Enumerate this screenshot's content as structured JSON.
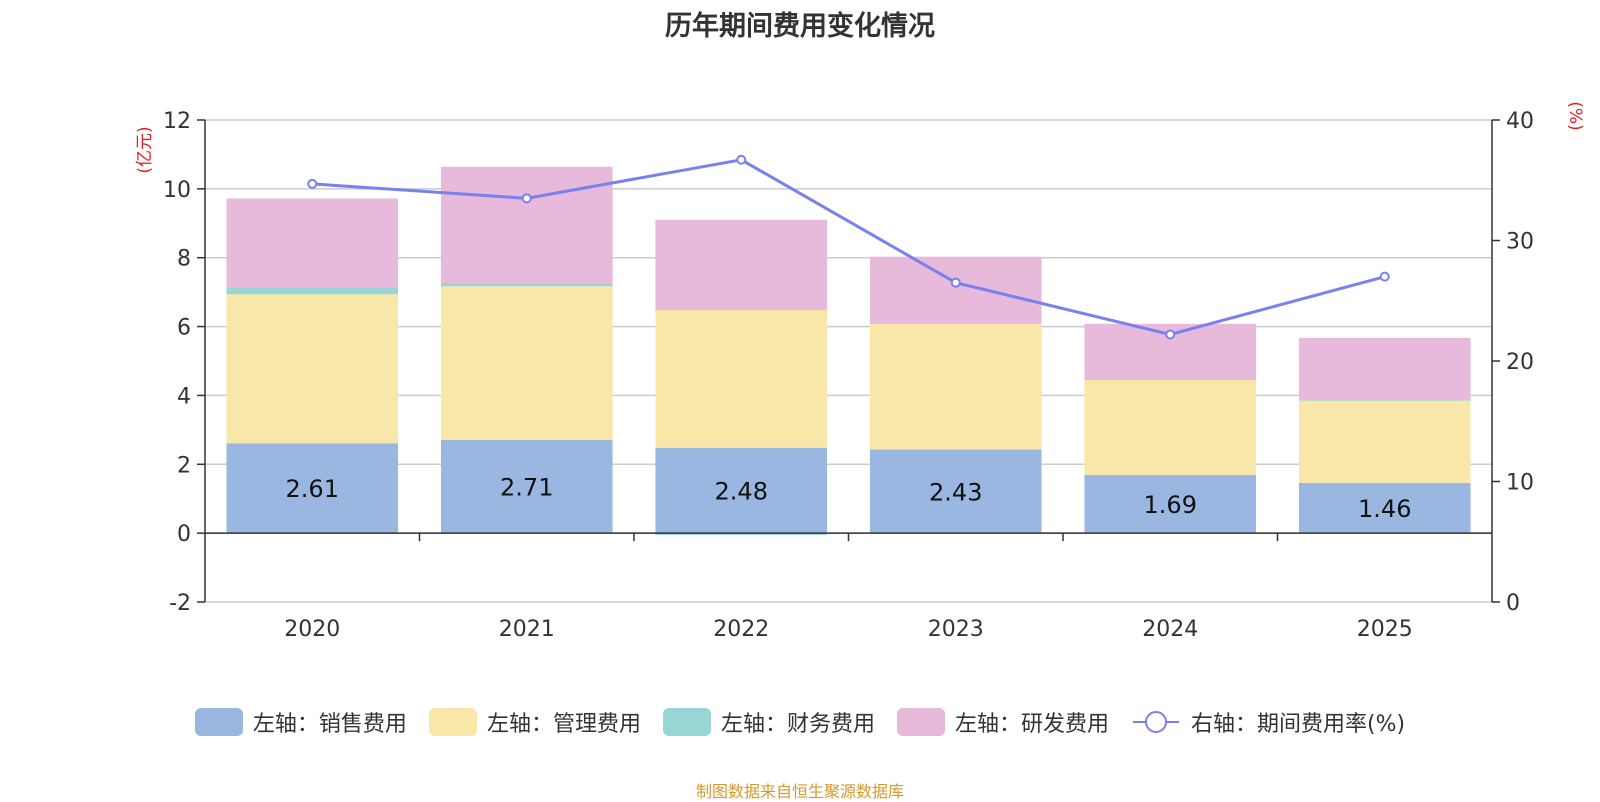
{
  "chart_data": {
    "type": "bar",
    "stacked": true,
    "title": "历年期间费用变化情况",
    "categories": [
      "2020",
      "2021",
      "2022",
      "2023",
      "2024",
      "2025"
    ],
    "left_axis": {
      "unit_label": "(亿元)",
      "ylim": [
        -2,
        12
      ],
      "ticks": [
        -2,
        0,
        2,
        4,
        6,
        8,
        10,
        12
      ]
    },
    "right_axis": {
      "unit_label": "(%)",
      "ylim": [
        0,
        40
      ],
      "ticks": [
        0,
        10,
        20,
        30,
        40
      ]
    },
    "series": [
      {
        "name": "左轴：销售费用",
        "axis": "left",
        "color": "#9ab7e2",
        "values": [
          2.61,
          2.71,
          2.48,
          2.43,
          1.69,
          1.46
        ],
        "labels": [
          "2.61",
          "2.71",
          "2.48",
          "2.43",
          "1.69",
          "1.46"
        ]
      },
      {
        "name": "左轴：管理费用",
        "axis": "left",
        "color": "#f8e7a8",
        "values": [
          4.33,
          4.46,
          4.0,
          3.65,
          2.76,
          2.39
        ]
      },
      {
        "name": "左轴：财务费用",
        "axis": "left",
        "color": "#98d5d5",
        "values": [
          0.18,
          0.09,
          -0.05,
          0.02,
          0.03,
          0.03
        ]
      },
      {
        "name": "左轴：研发费用",
        "axis": "left",
        "color": "#e7b9da",
        "values": [
          2.6,
          3.38,
          2.62,
          1.93,
          1.6,
          1.79
        ]
      },
      {
        "name": "右轴：期间费用率(%)",
        "axis": "right",
        "type": "line",
        "color": "#7b80ef",
        "values": [
          34.7,
          33.5,
          36.7,
          26.5,
          22.2,
          27.0
        ]
      }
    ]
  },
  "source_note": "制图数据来自恒生聚源数据库"
}
